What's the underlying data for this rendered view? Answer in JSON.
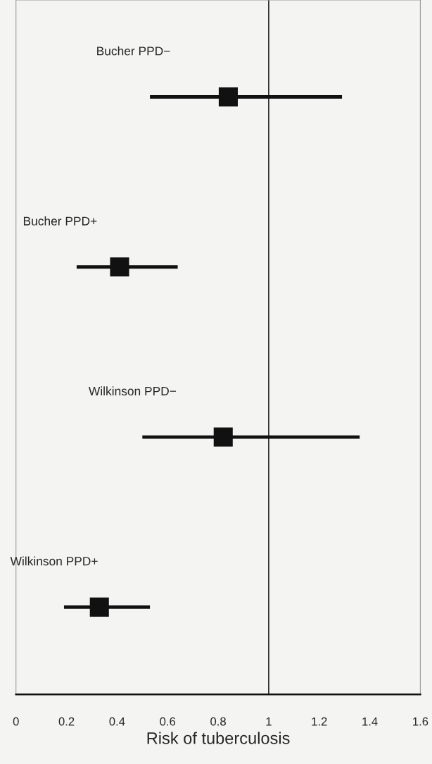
{
  "chart_data": {
    "type": "scatter",
    "orientation": "horizontal",
    "xlabel": "Risk of tuberculosis",
    "categories": [
      "Bucher PPD−",
      "Bucher PPD+",
      "Wilkinson PPD−",
      "Wilkinson PPD+"
    ],
    "values": [
      0.84,
      0.41,
      0.82,
      0.33
    ],
    "errors": [
      [
        0.53,
        1.29
      ],
      [
        0.24,
        0.64
      ],
      [
        0.5,
        1.36
      ],
      [
        0.19,
        0.53
      ]
    ],
    "color": "#111111",
    "marker": "square",
    "xlim": [
      0,
      1.6
    ],
    "xticks": [
      0,
      0.2,
      0.4,
      0.6,
      0.8,
      1,
      1.2,
      1.4,
      1.6
    ],
    "ref_lines": [
      {
        "axis": "x",
        "value": 1,
        "color": "#222222"
      }
    ],
    "tick_labels": "x",
    "grid": false,
    "legend": false
  }
}
